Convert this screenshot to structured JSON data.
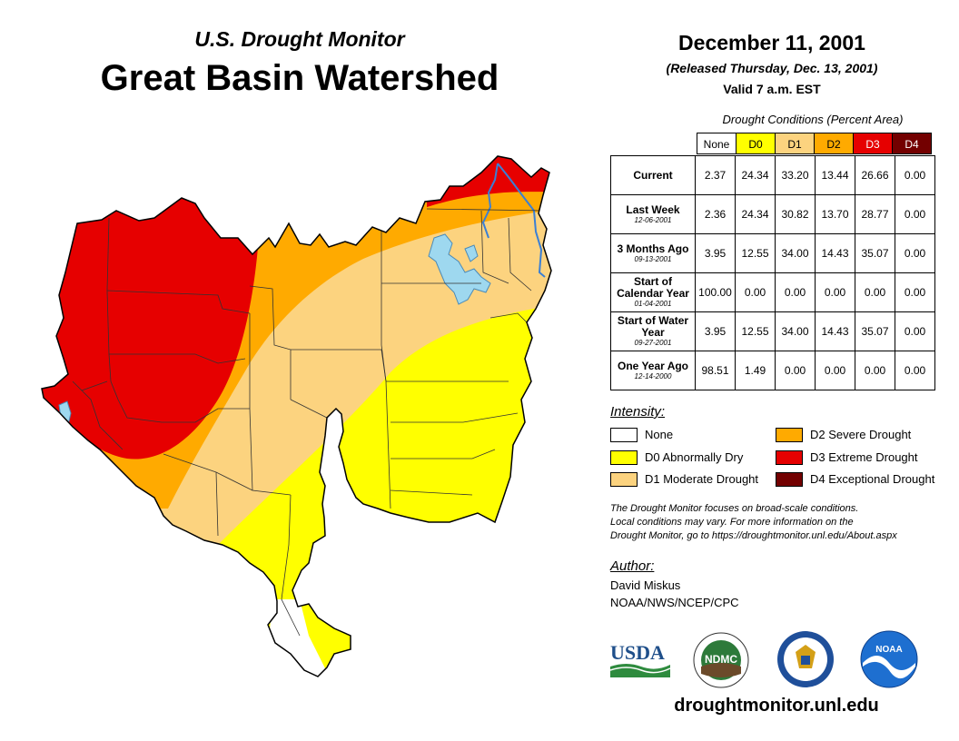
{
  "header": {
    "subtitle": "U.S. Drought Monitor",
    "title": "Great Basin Watershed",
    "date": "December 11, 2001",
    "released": "(Released Thursday, Dec. 13, 2001)",
    "valid": "Valid 7 a.m. EST"
  },
  "table": {
    "caption": "Drought Conditions (Percent Area)",
    "columns": [
      "None",
      "D0",
      "D1",
      "D2",
      "D3",
      "D4"
    ],
    "rows": [
      {
        "label": "Current",
        "date": "",
        "values": [
          "2.37",
          "24.34",
          "33.20",
          "13.44",
          "26.66",
          "0.00"
        ]
      },
      {
        "label": "Last Week",
        "date": "12-06-2001",
        "values": [
          "2.36",
          "24.34",
          "30.82",
          "13.70",
          "28.77",
          "0.00"
        ]
      },
      {
        "label": "3 Months Ago",
        "date": "09-13-2001",
        "values": [
          "3.95",
          "12.55",
          "34.00",
          "14.43",
          "35.07",
          "0.00"
        ]
      },
      {
        "label": "Start of Calendar Year",
        "date": "01-04-2001",
        "values": [
          "100.00",
          "0.00",
          "0.00",
          "0.00",
          "0.00",
          "0.00"
        ]
      },
      {
        "label": "Start of Water Year",
        "date": "09-27-2001",
        "values": [
          "3.95",
          "12.55",
          "34.00",
          "14.43",
          "35.07",
          "0.00"
        ]
      },
      {
        "label": "One Year Ago",
        "date": "12-14-2000",
        "values": [
          "98.51",
          "1.49",
          "0.00",
          "0.00",
          "0.00",
          "0.00"
        ]
      }
    ]
  },
  "legend": {
    "title": "Intensity:",
    "items": [
      {
        "label": "None",
        "color": "#ffffff"
      },
      {
        "label": "D0 Abnormally Dry",
        "color": "#ffff00"
      },
      {
        "label": "D1 Moderate Drought",
        "color": "#fcd37f"
      },
      {
        "label": "D2 Severe Drought",
        "color": "#ffaa00"
      },
      {
        "label": "D3 Extreme Drought",
        "color": "#e60000"
      },
      {
        "label": "D4 Exceptional Drought",
        "color": "#730000"
      }
    ]
  },
  "note": {
    "line1": "The Drought Monitor focuses on broad-scale conditions.",
    "line2": "Local conditions may vary. For more information on the",
    "line3": "Drought Monitor, go to https://droughtmonitor.unl.edu/About.aspx"
  },
  "author": {
    "label": "Author:",
    "name": "David Miskus",
    "org": "NOAA/NWS/NCEP/CPC"
  },
  "logos": {
    "usda": "USDA",
    "ndmc": "NDMC",
    "noaa": "NOAA"
  },
  "footer": {
    "url": "droughtmonitor.unl.edu"
  },
  "colors": {
    "none": "#ffffff",
    "d0": "#ffff00",
    "d1": "#fcd37f",
    "d2": "#ffaa00",
    "d3": "#e60000",
    "d4": "#730000",
    "water": "#9ed8ef",
    "river": "#3a7fd5"
  }
}
